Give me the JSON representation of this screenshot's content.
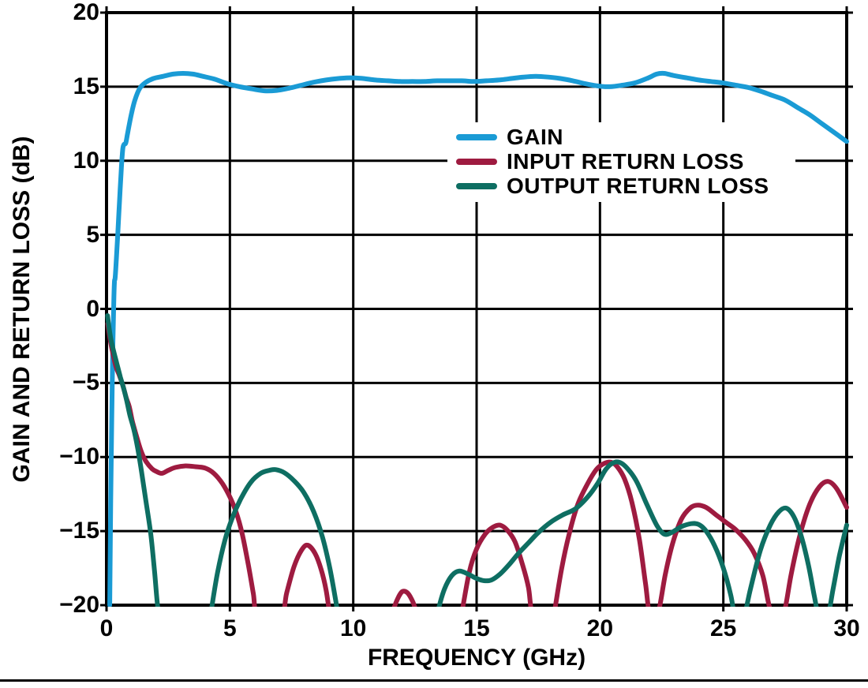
{
  "figure": {
    "x_axis_title": "FREQUENCY (GHz)",
    "y_axis_title": "GAIN AND RETURN LOSS (dB)"
  },
  "chart_data": {
    "type": "line",
    "title": "",
    "xlabel": "FREQUENCY (GHz)",
    "ylabel": "GAIN AND RETURN LOSS (dB)",
    "xlim": [
      0,
      30
    ],
    "ylim": [
      -20,
      20
    ],
    "grid": true,
    "legend_position": "upper-center",
    "axis_color": "#000000",
    "x_ticks": {
      "values": [
        0,
        5,
        10,
        15,
        20,
        25,
        30
      ],
      "labels": [
        "0",
        "5",
        "10",
        "15",
        "20",
        "25",
        "30"
      ]
    },
    "y_ticks": {
      "values": [
        20,
        15,
        10,
        5,
        0,
        -5,
        -10,
        -15,
        -20
      ],
      "labels": [
        "20",
        "15",
        "10",
        "5",
        "0",
        "−5",
        "−10",
        "−15",
        "−20"
      ]
    },
    "series": [
      {
        "name": "GAIN",
        "color": "#1A9BD5",
        "points": [
          [
            0.13,
            -20
          ],
          [
            0.17,
            -13
          ],
          [
            0.21,
            -7.5
          ],
          [
            0.25,
            -3
          ],
          [
            0.29,
            0.2
          ],
          [
            0.32,
            1.8
          ],
          [
            0.35,
            2.1
          ],
          [
            0.4,
            3.4
          ],
          [
            0.46,
            5.2
          ],
          [
            0.53,
            7.4
          ],
          [
            0.6,
            9.5
          ],
          [
            0.66,
            10.8
          ],
          [
            0.71,
            11.1
          ],
          [
            0.78,
            11.2
          ],
          [
            0.86,
            11.9
          ],
          [
            1.0,
            13.1
          ],
          [
            1.15,
            14.1
          ],
          [
            1.35,
            14.9
          ],
          [
            1.6,
            15.3
          ],
          [
            1.9,
            15.55
          ],
          [
            2.3,
            15.7
          ],
          [
            2.7,
            15.85
          ],
          [
            3.1,
            15.9
          ],
          [
            3.5,
            15.85
          ],
          [
            3.9,
            15.7
          ],
          [
            4.4,
            15.5
          ],
          [
            4.9,
            15.2
          ],
          [
            5.4,
            15.0
          ],
          [
            5.9,
            14.85
          ],
          [
            6.4,
            14.72
          ],
          [
            6.9,
            14.75
          ],
          [
            7.4,
            14.9
          ],
          [
            7.9,
            15.1
          ],
          [
            8.4,
            15.3
          ],
          [
            8.9,
            15.45
          ],
          [
            9.4,
            15.55
          ],
          [
            9.9,
            15.6
          ],
          [
            10.4,
            15.55
          ],
          [
            10.9,
            15.45
          ],
          [
            11.4,
            15.4
          ],
          [
            11.9,
            15.35
          ],
          [
            12.4,
            15.35
          ],
          [
            12.9,
            15.35
          ],
          [
            13.4,
            15.4
          ],
          [
            13.9,
            15.4
          ],
          [
            14.4,
            15.4
          ],
          [
            14.9,
            15.35
          ],
          [
            15.4,
            15.4
          ],
          [
            15.9,
            15.45
          ],
          [
            16.4,
            15.55
          ],
          [
            16.9,
            15.65
          ],
          [
            17.4,
            15.7
          ],
          [
            17.9,
            15.65
          ],
          [
            18.4,
            15.55
          ],
          [
            18.9,
            15.4
          ],
          [
            19.4,
            15.2
          ],
          [
            19.9,
            15.05
          ],
          [
            20.4,
            15.0
          ],
          [
            20.9,
            15.1
          ],
          [
            21.4,
            15.25
          ],
          [
            21.9,
            15.55
          ],
          [
            22.3,
            15.85
          ],
          [
            22.6,
            15.9
          ],
          [
            23.0,
            15.75
          ],
          [
            23.5,
            15.6
          ],
          [
            24.0,
            15.45
          ],
          [
            24.5,
            15.35
          ],
          [
            25.0,
            15.25
          ],
          [
            25.5,
            15.1
          ],
          [
            26.0,
            14.95
          ],
          [
            26.5,
            14.7
          ],
          [
            27.0,
            14.4
          ],
          [
            27.5,
            14.1
          ],
          [
            28.0,
            13.6
          ],
          [
            28.5,
            13.1
          ],
          [
            29.0,
            12.5
          ],
          [
            29.5,
            11.9
          ],
          [
            30.0,
            11.3
          ]
        ]
      },
      {
        "name": "INPUT RETURN LOSS",
        "color": "#9E1B40",
        "points": [
          [
            0.05,
            -1.0
          ],
          [
            0.15,
            -2.1
          ],
          [
            0.27,
            -3.1
          ],
          [
            0.38,
            -3.9
          ],
          [
            0.5,
            -4.4
          ],
          [
            0.65,
            -5.1
          ],
          [
            0.8,
            -6.0
          ],
          [
            0.92,
            -6.6
          ],
          [
            1.05,
            -7.6
          ],
          [
            1.2,
            -8.5
          ],
          [
            1.4,
            -9.6
          ],
          [
            1.6,
            -10.3
          ],
          [
            1.85,
            -10.8
          ],
          [
            2.05,
            -11.0
          ],
          [
            2.25,
            -11.1
          ],
          [
            2.5,
            -10.9
          ],
          [
            2.8,
            -10.7
          ],
          [
            3.2,
            -10.6
          ],
          [
            3.6,
            -10.65
          ],
          [
            4.0,
            -10.75
          ],
          [
            4.35,
            -11.1
          ],
          [
            4.7,
            -11.8
          ],
          [
            5.0,
            -12.7
          ],
          [
            5.25,
            -13.7
          ],
          [
            5.5,
            -15.2
          ],
          [
            5.75,
            -17.3
          ],
          [
            5.95,
            -19.2
          ],
          [
            6.15,
            -21
          ],
          [
            7.05,
            -21
          ],
          [
            7.3,
            -19.2
          ],
          [
            7.6,
            -17.4
          ],
          [
            7.9,
            -16.3
          ],
          [
            8.15,
            -15.95
          ],
          [
            8.45,
            -16.5
          ],
          [
            8.7,
            -17.6
          ],
          [
            8.9,
            -19.0
          ],
          [
            9.08,
            -21
          ],
          [
            9.3,
            -23
          ],
          [
            11.3,
            -23
          ],
          [
            11.6,
            -20.5
          ],
          [
            11.85,
            -19.4
          ],
          [
            12.05,
            -19.05
          ],
          [
            12.3,
            -19.4
          ],
          [
            12.55,
            -20.5
          ],
          [
            12.8,
            -23
          ],
          [
            14.1,
            -23
          ],
          [
            14.4,
            -20.5
          ],
          [
            14.7,
            -17.8
          ],
          [
            15.0,
            -16.2
          ],
          [
            15.35,
            -15.2
          ],
          [
            15.65,
            -14.75
          ],
          [
            15.95,
            -14.6
          ],
          [
            16.25,
            -14.95
          ],
          [
            16.55,
            -15.7
          ],
          [
            16.85,
            -17.2
          ],
          [
            17.1,
            -18.8
          ],
          [
            17.3,
            -21
          ],
          [
            17.9,
            -23
          ],
          [
            18.15,
            -20.5
          ],
          [
            18.45,
            -17.5
          ],
          [
            18.75,
            -15.2
          ],
          [
            19.1,
            -13.2
          ],
          [
            19.5,
            -11.8
          ],
          [
            19.85,
            -10.85
          ],
          [
            20.15,
            -10.45
          ],
          [
            20.45,
            -10.35
          ],
          [
            20.7,
            -10.65
          ],
          [
            21.0,
            -11.5
          ],
          [
            21.3,
            -13.1
          ],
          [
            21.6,
            -15.6
          ],
          [
            21.85,
            -18.6
          ],
          [
            22.05,
            -21
          ],
          [
            22.35,
            -20.6
          ],
          [
            22.65,
            -17.9
          ],
          [
            22.95,
            -15.8
          ],
          [
            23.3,
            -14.2
          ],
          [
            23.65,
            -13.45
          ],
          [
            23.95,
            -13.25
          ],
          [
            24.3,
            -13.4
          ],
          [
            24.7,
            -13.9
          ],
          [
            25.1,
            -14.4
          ],
          [
            25.5,
            -14.9
          ],
          [
            25.9,
            -15.6
          ],
          [
            26.25,
            -16.5
          ],
          [
            26.6,
            -18.0
          ],
          [
            26.85,
            -20.0
          ],
          [
            27.1,
            -21.5
          ],
          [
            27.45,
            -20.6
          ],
          [
            27.75,
            -17.9
          ],
          [
            28.1,
            -15.3
          ],
          [
            28.5,
            -13.2
          ],
          [
            28.9,
            -12.0
          ],
          [
            29.25,
            -11.65
          ],
          [
            29.6,
            -12.15
          ],
          [
            30.0,
            -13.4
          ]
        ]
      },
      {
        "name": "OUTPUT RETURN LOSS",
        "color": "#0E6E62",
        "points": [
          [
            0.04,
            -0.45
          ],
          [
            0.15,
            -1.8
          ],
          [
            0.28,
            -2.8
          ],
          [
            0.42,
            -3.7
          ],
          [
            0.56,
            -4.6
          ],
          [
            0.7,
            -5.4
          ],
          [
            0.82,
            -6.2
          ],
          [
            0.95,
            -7.2
          ],
          [
            1.1,
            -8.1
          ],
          [
            1.25,
            -9.3
          ],
          [
            1.42,
            -11.0
          ],
          [
            1.6,
            -13.0
          ],
          [
            1.8,
            -15.3
          ],
          [
            1.95,
            -17.8
          ],
          [
            2.08,
            -20.2
          ],
          [
            2.3,
            -23
          ],
          [
            4.0,
            -23
          ],
          [
            4.25,
            -20.3
          ],
          [
            4.5,
            -17.8
          ],
          [
            4.8,
            -15.6
          ],
          [
            5.1,
            -14.1
          ],
          [
            5.45,
            -12.8
          ],
          [
            5.85,
            -11.7
          ],
          [
            6.25,
            -11.1
          ],
          [
            6.6,
            -10.9
          ],
          [
            6.85,
            -10.85
          ],
          [
            7.2,
            -11.05
          ],
          [
            7.6,
            -11.6
          ],
          [
            8.0,
            -12.4
          ],
          [
            8.4,
            -13.7
          ],
          [
            8.75,
            -15.4
          ],
          [
            9.05,
            -17.5
          ],
          [
            9.3,
            -19.8
          ],
          [
            9.5,
            -22
          ],
          [
            9.8,
            -23
          ],
          [
            13.1,
            -23
          ],
          [
            13.45,
            -20.3
          ],
          [
            13.7,
            -18.9
          ],
          [
            14.0,
            -18.0
          ],
          [
            14.3,
            -17.7
          ],
          [
            14.65,
            -17.9
          ],
          [
            15.0,
            -18.2
          ],
          [
            15.3,
            -18.35
          ],
          [
            15.6,
            -18.3
          ],
          [
            15.95,
            -17.9
          ],
          [
            16.3,
            -17.3
          ],
          [
            16.7,
            -16.5
          ],
          [
            17.1,
            -15.8
          ],
          [
            17.5,
            -15.1
          ],
          [
            18.0,
            -14.4
          ],
          [
            18.5,
            -13.9
          ],
          [
            19.0,
            -13.5
          ],
          [
            19.5,
            -12.7
          ],
          [
            19.9,
            -11.8
          ],
          [
            20.25,
            -10.8
          ],
          [
            20.6,
            -10.35
          ],
          [
            20.9,
            -10.45
          ],
          [
            21.2,
            -10.95
          ],
          [
            21.5,
            -11.7
          ],
          [
            21.9,
            -13.2
          ],
          [
            22.3,
            -14.6
          ],
          [
            22.6,
            -15.2
          ],
          [
            22.9,
            -15.1
          ],
          [
            23.3,
            -14.7
          ],
          [
            23.7,
            -14.5
          ],
          [
            24.0,
            -14.55
          ],
          [
            24.3,
            -15.0
          ],
          [
            24.65,
            -16.0
          ],
          [
            25.0,
            -17.5
          ],
          [
            25.3,
            -19.3
          ],
          [
            25.5,
            -21
          ],
          [
            25.8,
            -21
          ],
          [
            26.1,
            -18.9
          ],
          [
            26.5,
            -16.3
          ],
          [
            26.9,
            -14.6
          ],
          [
            27.25,
            -13.7
          ],
          [
            27.55,
            -13.45
          ],
          [
            27.85,
            -14.0
          ],
          [
            28.15,
            -15.3
          ],
          [
            28.45,
            -17.3
          ],
          [
            28.7,
            -19.5
          ],
          [
            28.9,
            -21
          ],
          [
            29.2,
            -21
          ],
          [
            29.45,
            -18.9
          ],
          [
            29.7,
            -16.7
          ],
          [
            30.0,
            -14.6
          ]
        ]
      }
    ]
  }
}
